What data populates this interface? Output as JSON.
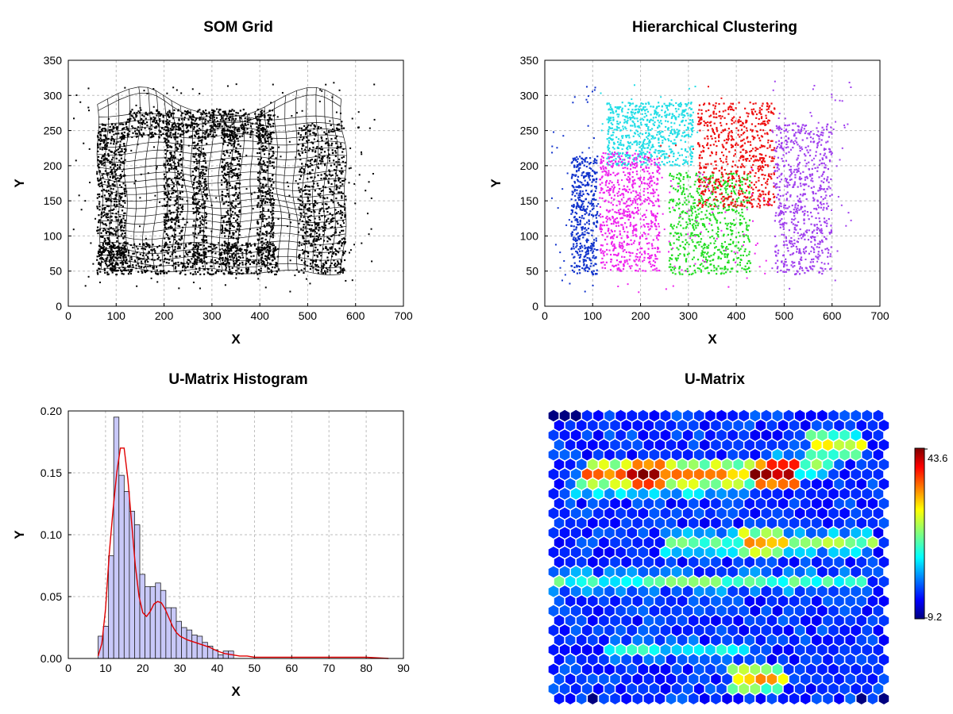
{
  "colors": {
    "cluster_cyan": "#22dde6",
    "cluster_magenta": "#ee22ee",
    "cluster_green": "#22dd22",
    "cluster_red": "#ee1111",
    "cluster_purple": "#a040ee",
    "cluster_blue": "#1133cc",
    "hist_fill": "#c8c8f8",
    "kde_line": "#e00000"
  },
  "chart_data": [
    {
      "id": "som",
      "type": "scatter",
      "title": "SOM Grid",
      "xlabel": "X",
      "ylabel": "Y",
      "xlim": [
        0,
        700
      ],
      "ylim": [
        0,
        350
      ],
      "xticks": [
        "0",
        "100",
        "200",
        "300",
        "400",
        "500",
        "600",
        "700"
      ],
      "yticks": [
        "0",
        "50",
        "100",
        "150",
        "200",
        "250",
        "300",
        "350"
      ],
      "grid": true,
      "overlay": "som-grid-mesh",
      "letters": [
        "D",
        "M",
        "S"
      ],
      "regions": [
        {
          "name": "top-bar",
          "x": [
            120,
            430
          ],
          "y": [
            240,
            280
          ]
        },
        {
          "name": "bottom-bar",
          "x": [
            60,
            440
          ],
          "y": [
            45,
            90
          ]
        },
        {
          "name": "d-left",
          "x": [
            60,
            120
          ],
          "y": [
            50,
            260
          ]
        },
        {
          "name": "d-right",
          "x": [
            200,
            240
          ],
          "y": [
            90,
            260
          ]
        },
        {
          "name": "m-left",
          "x": [
            260,
            290
          ],
          "y": [
            60,
            250
          ]
        },
        {
          "name": "m-mid",
          "x": [
            320,
            360
          ],
          "y": [
            60,
            250
          ]
        },
        {
          "name": "m-right",
          "x": [
            395,
            430
          ],
          "y": [
            60,
            250
          ]
        },
        {
          "name": "s-shape",
          "x": [
            480,
            580
          ],
          "y": [
            45,
            260
          ]
        }
      ]
    },
    {
      "id": "hc",
      "type": "scatter",
      "title": "Hierarchical Clustering",
      "xlabel": "X",
      "ylabel": "Y",
      "xlim": [
        0,
        700
      ],
      "ylim": [
        0,
        350
      ],
      "xticks": [
        "0",
        "100",
        "200",
        "300",
        "400",
        "500",
        "600",
        "700"
      ],
      "yticks": [
        "0",
        "50",
        "100",
        "150",
        "200",
        "250",
        "300",
        "350"
      ],
      "grid": true,
      "clusters": [
        {
          "name": "cyan",
          "x": [
            130,
            310
          ],
          "y": [
            200,
            290
          ]
        },
        {
          "name": "magenta",
          "x": [
            115,
            240
          ],
          "y": [
            50,
            220
          ]
        },
        {
          "name": "blue",
          "x": [
            55,
            110
          ],
          "y": [
            45,
            215
          ]
        },
        {
          "name": "green",
          "x": [
            260,
            430
          ],
          "y": [
            45,
            190
          ]
        },
        {
          "name": "red",
          "x": [
            320,
            480
          ],
          "y": [
            140,
            290
          ]
        },
        {
          "name": "purple",
          "x": [
            480,
            600
          ],
          "y": [
            45,
            260
          ]
        }
      ]
    },
    {
      "id": "hist",
      "type": "bar",
      "title": "U-Matrix Histogram",
      "xlabel": "X",
      "ylabel": "Y",
      "xlim": [
        0,
        90
      ],
      "ylim": [
        0,
        0.2
      ],
      "xticks": [
        "0",
        "10",
        "20",
        "30",
        "40",
        "50",
        "60",
        "70",
        "80",
        "90"
      ],
      "yticks": [
        "0.00",
        "0.05",
        "0.10",
        "0.15",
        "0.20"
      ],
      "bin_start": 8,
      "bin_width": 1.4,
      "values": [
        0.018,
        0.026,
        0.083,
        0.195,
        0.148,
        0.135,
        0.119,
        0.108,
        0.068,
        0.058,
        0.058,
        0.061,
        0.055,
        0.041,
        0.041,
        0.03,
        0.025,
        0.023,
        0.019,
        0.018,
        0.013,
        0.01,
        0.007,
        0.003,
        0.006,
        0.006
      ],
      "kde": {
        "x": [
          8,
          9,
          10,
          11,
          12,
          13,
          14,
          15,
          16,
          17,
          18,
          19,
          20,
          21,
          22,
          23,
          24,
          25,
          26,
          27,
          28,
          29,
          30,
          32,
          34,
          36,
          38,
          40,
          42,
          44,
          46,
          48,
          50,
          55,
          60,
          70,
          80,
          86
        ],
        "y": [
          0.002,
          0.012,
          0.04,
          0.085,
          0.12,
          0.15,
          0.17,
          0.17,
          0.145,
          0.11,
          0.075,
          0.05,
          0.037,
          0.034,
          0.038,
          0.044,
          0.046,
          0.045,
          0.04,
          0.033,
          0.026,
          0.021,
          0.018,
          0.015,
          0.013,
          0.011,
          0.009,
          0.006,
          0.004,
          0.003,
          0.002,
          0.002,
          0.001,
          0.001,
          0.001,
          0.001,
          0.001,
          0
        ]
      }
    },
    {
      "id": "umatrix",
      "type": "heatmap",
      "title": "U-Matrix",
      "cols": 30,
      "rows": 30,
      "vmin": 9.2,
      "vmax": 43.6,
      "colorbar_ticks": [
        "43.6",
        "9.2"
      ],
      "high_values": [
        {
          "row": 6,
          "x_range": [
            0.08,
            0.75
          ],
          "value": 34
        },
        {
          "row": 6,
          "x_range": [
            0.22,
            0.33
          ],
          "value": 43
        },
        {
          "row": 6,
          "x_range": [
            0.62,
            0.74
          ],
          "value": 43
        },
        {
          "row": 7,
          "x_range": [
            0.05,
            0.6
          ],
          "value": 27
        },
        {
          "row": 5,
          "x_range": [
            0.65,
            0.85
          ],
          "value": 26
        },
        {
          "row": 3,
          "x_range": [
            0.78,
            0.95
          ],
          "value": 30
        },
        {
          "row": 13,
          "x_range": [
            0.33,
            0.98
          ],
          "value": 26
        },
        {
          "row": 13,
          "x_range": [
            0.56,
            0.72
          ],
          "value": 34
        },
        {
          "row": 17,
          "x_range": [
            0.0,
            0.95
          ],
          "value": 24
        },
        {
          "row": 24,
          "x_range": [
            0.15,
            0.6
          ],
          "value": 22
        },
        {
          "row": 27,
          "x_range": [
            0.55,
            0.7
          ],
          "value": 33
        }
      ]
    }
  ]
}
